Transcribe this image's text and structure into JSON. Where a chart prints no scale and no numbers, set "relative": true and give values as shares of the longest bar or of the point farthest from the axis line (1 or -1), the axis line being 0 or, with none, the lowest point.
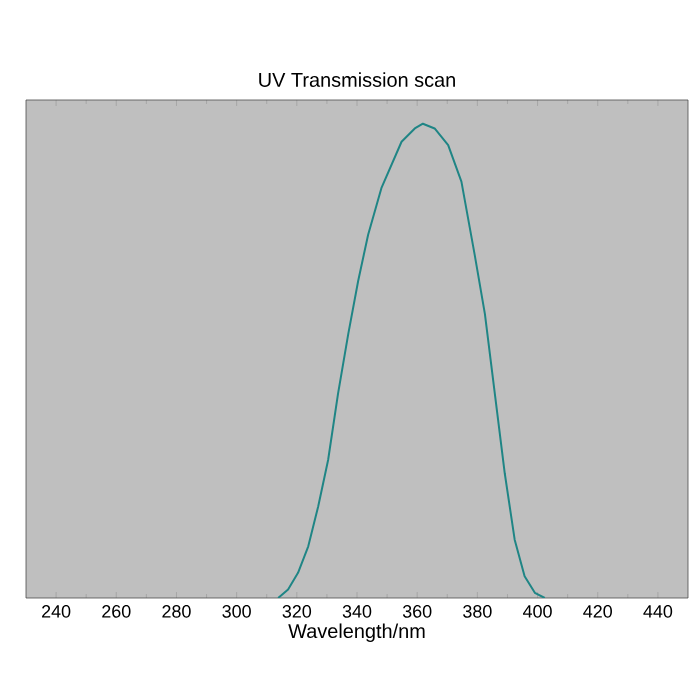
{
  "chart_data": {
    "type": "line",
    "title": "UV Transmission scan",
    "xlabel": "Wavelength/nm",
    "relative": true,
    "tick_labels": "x",
    "marker": "none",
    "line_style": "solid",
    "xlim": [
      230,
      450
    ],
    "xticks": [
      240,
      260,
      280,
      300,
      320,
      340,
      360,
      380,
      400,
      420,
      440
    ],
    "series": [
      {
        "color": "#1f8585",
        "x": [
          313.8,
          317.1,
          320.4,
          323.8,
          327.1,
          330.4,
          333.7,
          337.1,
          340.4,
          343.7,
          348.1,
          354.8,
          359.2,
          361.9,
          365.8,
          370.3,
          374.7,
          379.1,
          382.5,
          385.8,
          389.1,
          392.4,
          395.7,
          399.1,
          402.4
        ],
        "values": [
          0,
          0.018,
          0.053,
          0.109,
          0.193,
          0.291,
          0.431,
          0.557,
          0.669,
          0.766,
          0.864,
          0.962,
          0.99,
          1,
          0.99,
          0.955,
          0.878,
          0.724,
          0.599,
          0.431,
          0.263,
          0.123,
          0.046,
          0.011,
          0
        ]
      }
    ]
  }
}
